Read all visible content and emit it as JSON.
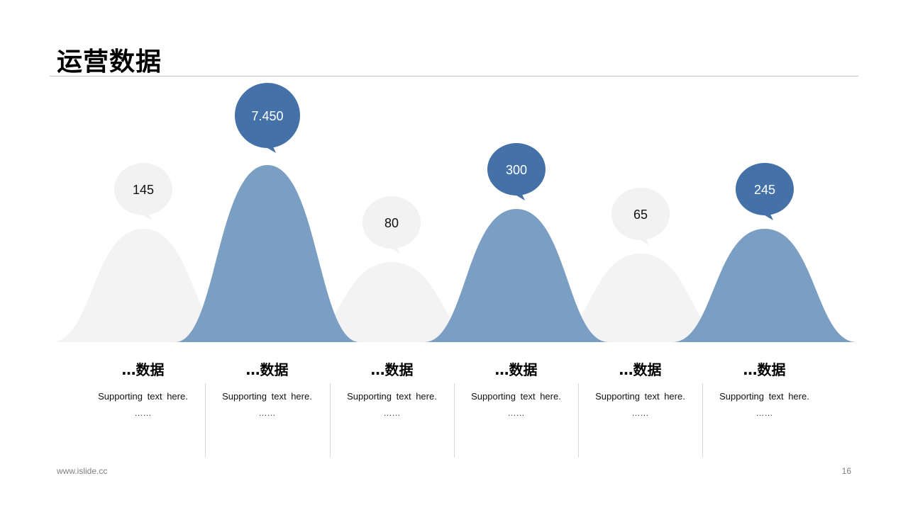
{
  "title": "运营数据",
  "footer": {
    "url": "www.islide.cc",
    "page": "16"
  },
  "colors": {
    "accent_dark": "#4472a8",
    "accent_light": "#7b9ec3",
    "gray": "#f3f3f3",
    "overlap": "#cdd6e0"
  },
  "chart_data": {
    "type": "area",
    "values": [
      145,
      7450,
      80,
      300,
      65,
      245
    ],
    "labels": [
      "145",
      "7.450",
      "80",
      "300",
      "65",
      "245"
    ],
    "styles": [
      "gray",
      "blue",
      "gray",
      "blue",
      "gray",
      "blue"
    ]
  },
  "columns": [
    {
      "heading": "…数据",
      "text": "Supporting text here.",
      "dots": "……"
    },
    {
      "heading": "…数据",
      "text": "Supporting text here.",
      "dots": "……"
    },
    {
      "heading": "…数据",
      "text": "Supporting text here.",
      "dots": "……"
    },
    {
      "heading": "…数据",
      "text": "Supporting text here.",
      "dots": "……"
    },
    {
      "heading": "…数据",
      "text": "Supporting text here.",
      "dots": "……"
    },
    {
      "heading": "…数据",
      "text": "Supporting text here.",
      "dots": "……"
    }
  ]
}
